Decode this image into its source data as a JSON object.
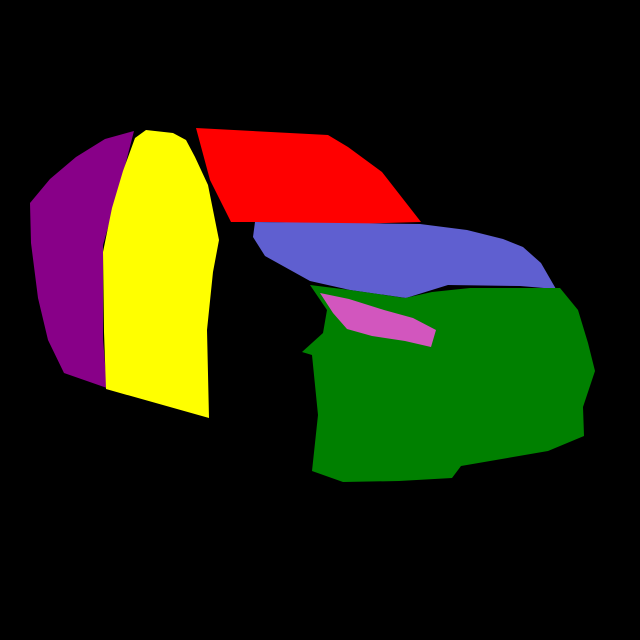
{
  "background_color": "#000000",
  "regions": [
    {
      "id": "purple-region",
      "color": "#880088"
    },
    {
      "id": "yellow-region",
      "color": "#FFFF00"
    },
    {
      "id": "red-region",
      "color": "#FF0000"
    },
    {
      "id": "blue-region",
      "color": "#5F5FD0"
    },
    {
      "id": "green-region",
      "color": "#008000"
    },
    {
      "id": "pink-region",
      "color": "#D256BE"
    }
  ]
}
